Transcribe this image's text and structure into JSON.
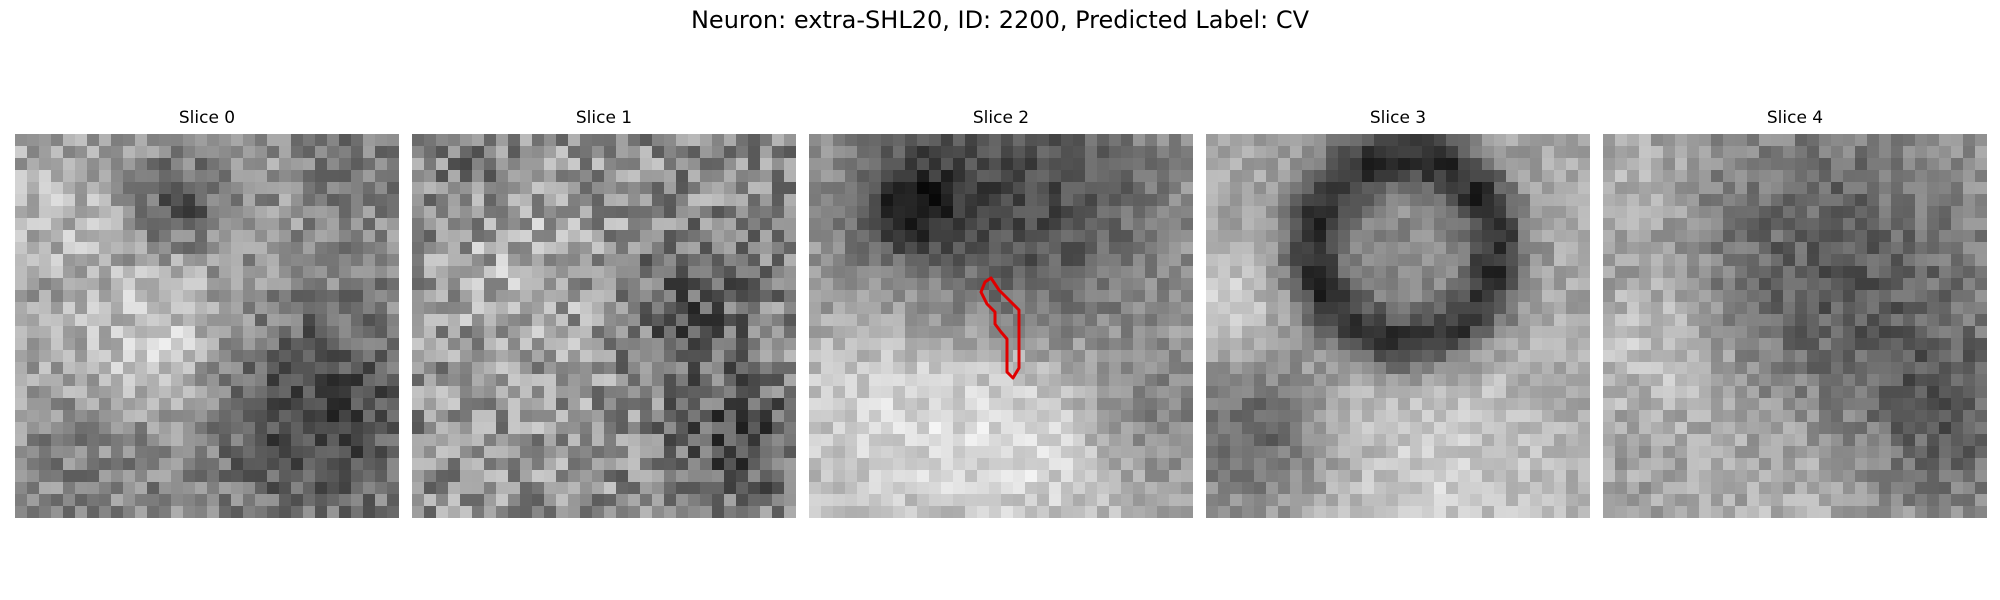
{
  "figure": {
    "title": "Neuron: extra-SHL20, ID: 2200, Predicted Label: CV"
  },
  "panels": [
    {
      "title": "Slice 0",
      "image": "grayscale-em-patch"
    },
    {
      "title": "Slice 1",
      "image": "grayscale-em-patch"
    },
    {
      "title": "Slice 2",
      "image": "grayscale-em-patch",
      "overlay": "neuron-contour-red"
    },
    {
      "title": "Slice 3",
      "image": "grayscale-em-patch"
    },
    {
      "title": "Slice 4",
      "image": "grayscale-em-patch"
    }
  ],
  "colors": {
    "contour": "#e00000"
  }
}
